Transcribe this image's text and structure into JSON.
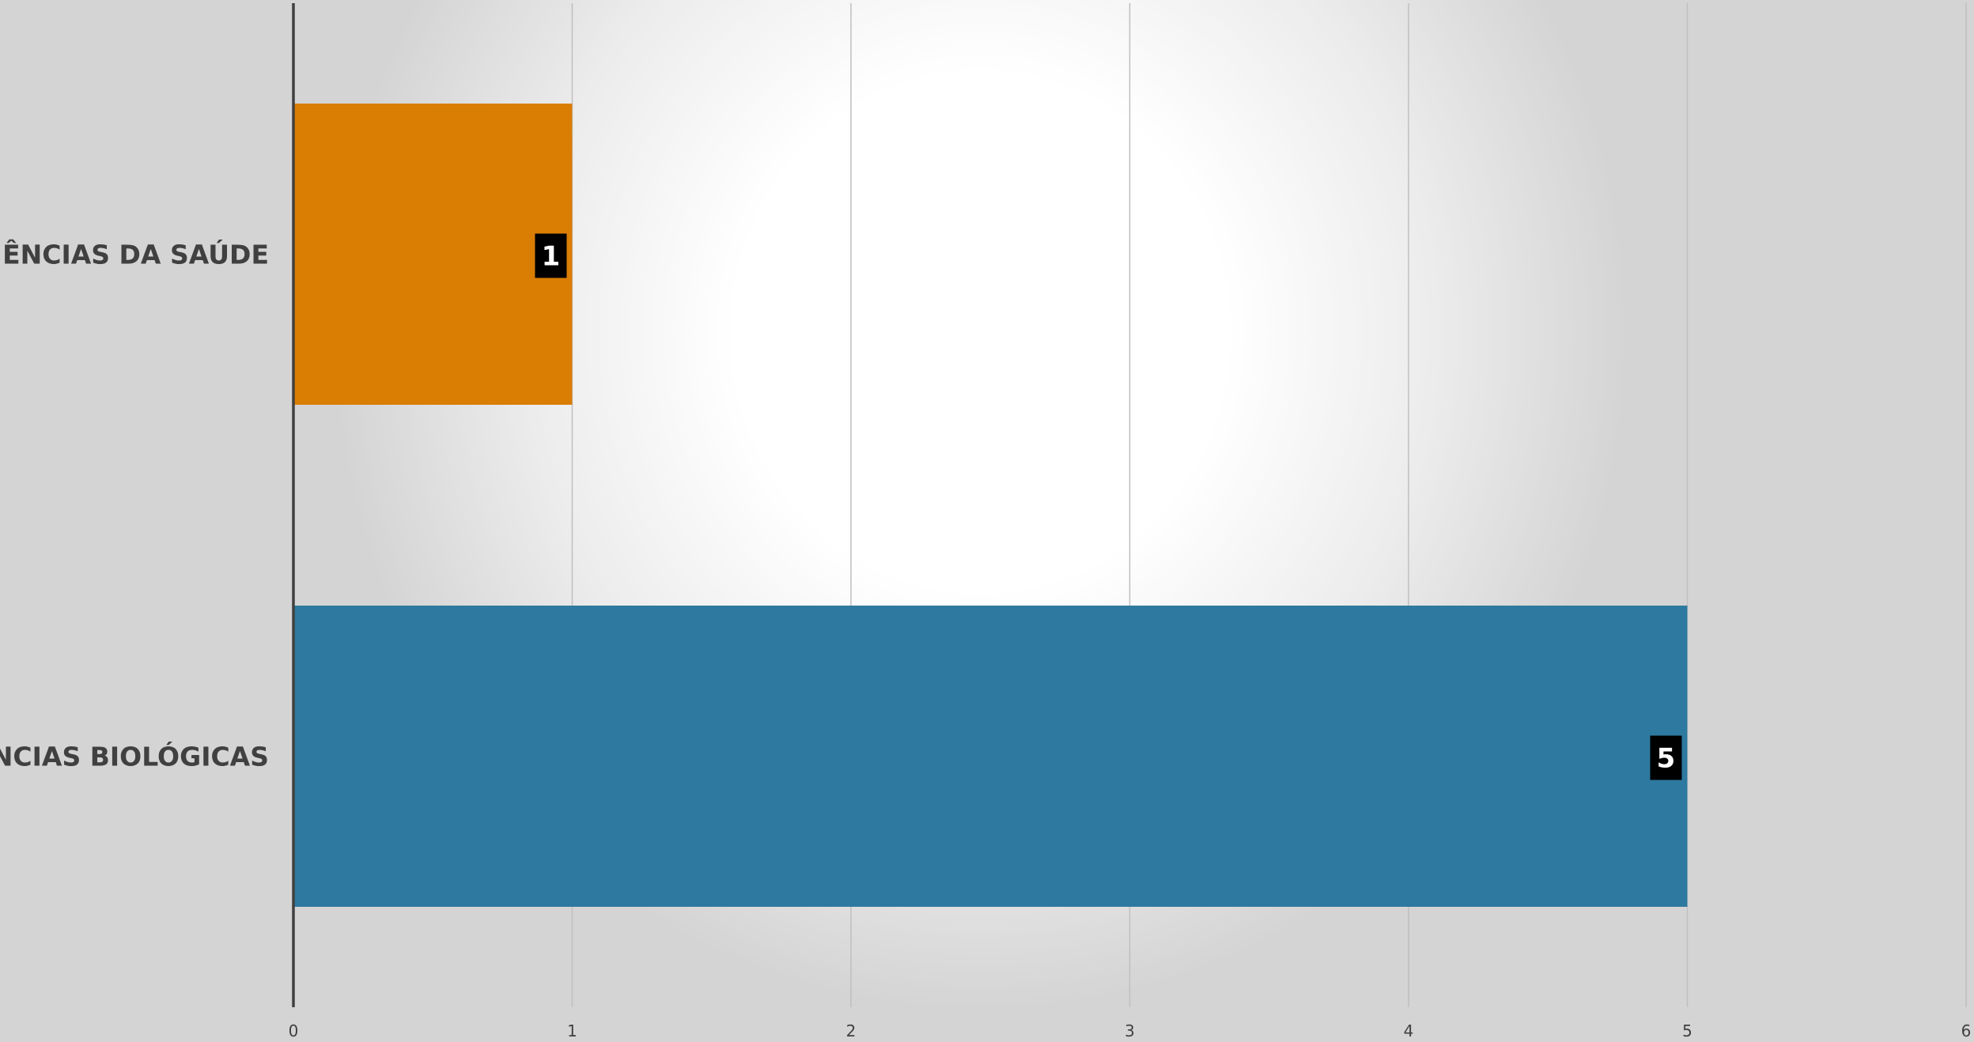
{
  "chart_data": {
    "type": "bar",
    "orientation": "horizontal",
    "categories": [
      "CIÊNCIAS DA SAÚDE",
      "CIÊNCIAS BIOLÓGICAS"
    ],
    "values": [
      1,
      5
    ],
    "bar_colors": [
      "#d97d03",
      "#2e799f"
    ],
    "data_labels": [
      "1",
      "5"
    ],
    "xlim": [
      0,
      6
    ],
    "xticks": [
      "0",
      "1",
      "2",
      "3",
      "4",
      "5",
      "6"
    ],
    "grid": "vertical",
    "title": "",
    "xlabel": "",
    "ylabel": ""
  },
  "colors": {
    "axis": "#404040",
    "gridline": "#bfbfbf",
    "label_box": "#000000",
    "label_text": "#ffffff"
  }
}
